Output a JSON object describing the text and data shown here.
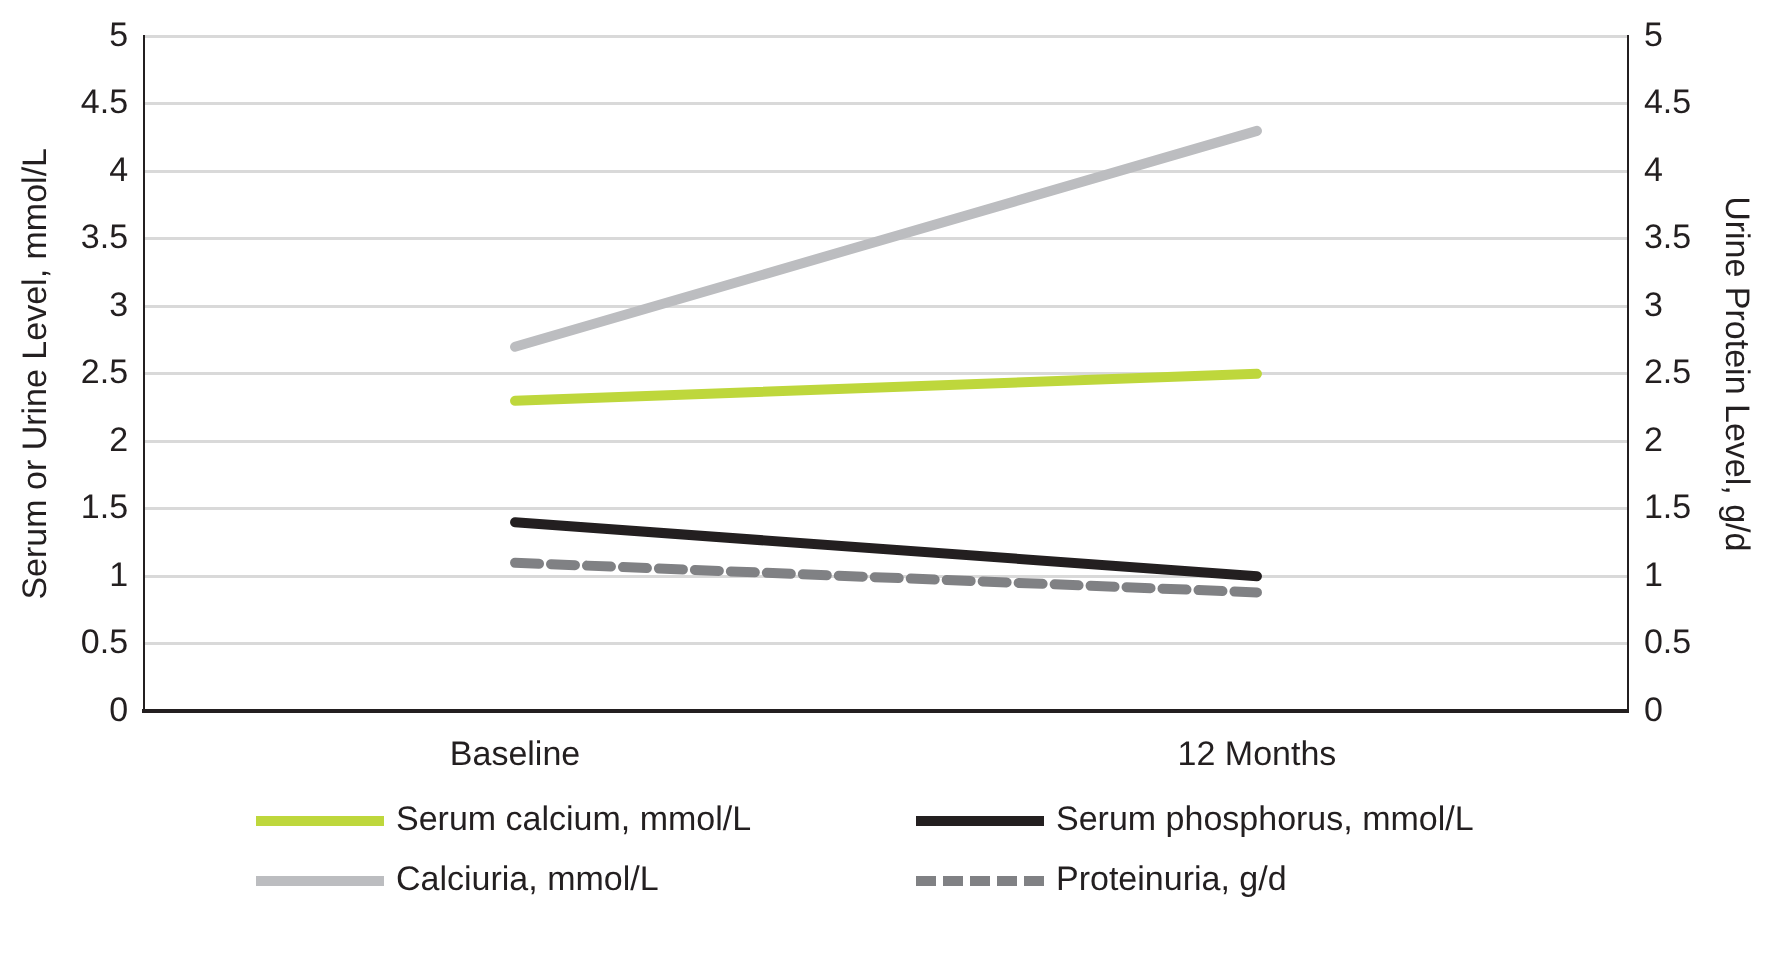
{
  "chart_data": {
    "type": "line",
    "ylabel": "Serum or Urine Level, mmol/L",
    "y2label": "Urine Protein Level, g/d",
    "categories": [
      "Baseline",
      "12 Months"
    ],
    "series": [
      {
        "name": "Serum calcium, mmol/L",
        "color": "#bed73c",
        "values": [
          2.3,
          2.5
        ]
      },
      {
        "name": "Serum phosphorus, mmol/L",
        "color": "#231f20",
        "values": [
          1.4,
          1.0
        ]
      },
      {
        "name": "Calciuria, mmol/L",
        "color": "#bcbdc0",
        "values": [
          2.7,
          4.3
        ]
      },
      {
        "name": "Proteinuria, g/d",
        "color": "#808184",
        "values": [
          1.1,
          0.88
        ],
        "axis": "y2",
        "line_style": "dashed"
      }
    ],
    "ylim": [
      0,
      5
    ],
    "yticks": [
      0,
      0.5,
      1,
      1.5,
      2,
      2.5,
      3,
      3.5,
      4,
      4.5,
      5
    ],
    "y2lim": [
      0,
      5
    ],
    "y2ticks": [
      0,
      0.5,
      1,
      1.5,
      2,
      2.5,
      3,
      3.5,
      4,
      4.5,
      5
    ],
    "grid": "y",
    "legend": "bottom",
    "marker": "none"
  }
}
